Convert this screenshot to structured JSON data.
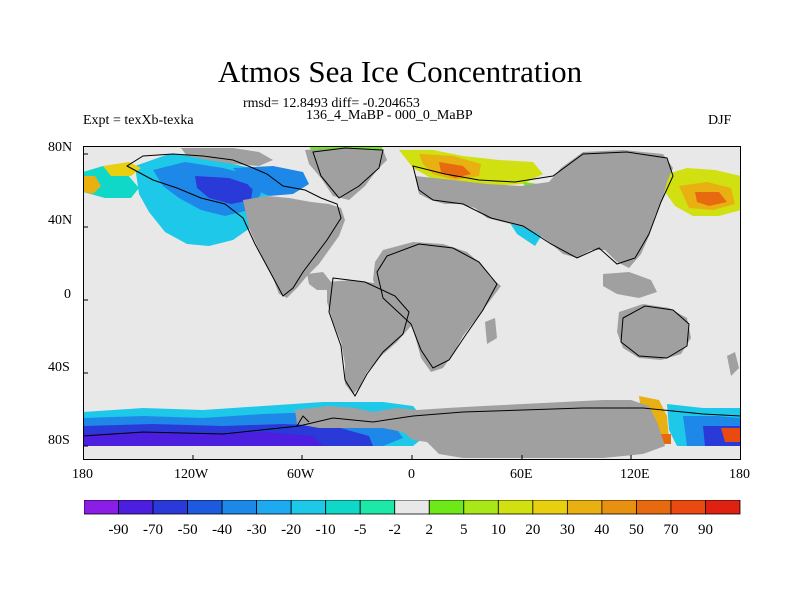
{
  "title": "Atmos Sea Ice Concentration",
  "stats": "rmsd= 12.8493 diff= -0.204653",
  "periods": "136_4_MaBP - 000_0_MaBP",
  "experiment": "Expt = texXb-texka",
  "season": "DJF",
  "lat_ticks": [
    "80N",
    "40N",
    "0",
    "40S",
    "80S"
  ],
  "lon_ticks": [
    "180",
    "120W",
    "60W",
    "0",
    "60E",
    "120E",
    "180"
  ],
  "colorbar": {
    "labels": [
      "-90",
      "-70",
      "-50",
      "-40",
      "-30",
      "-20",
      "-10",
      "-5",
      "-2",
      "2",
      "5",
      "10",
      "20",
      "30",
      "40",
      "50",
      "70",
      "90"
    ],
    "colors": [
      "#8a1ee6",
      "#4b1ee0",
      "#2a3ad8",
      "#1e5ae0",
      "#1e88e8",
      "#1eaaf0",
      "#1ec8e8",
      "#10d8c8",
      "#1ee8a8",
      "#e8e8e8",
      "#6ee818",
      "#a8e818",
      "#d0e010",
      "#e8d010",
      "#e8b010",
      "#e89010",
      "#e86a10",
      "#e84a10",
      "#e02010"
    ]
  },
  "map": {
    "land_color": "#a0a0a0",
    "ocean_color": "#e8e8e8",
    "lat_range": [
      -90,
      90
    ],
    "lon_range": [
      -180,
      180
    ]
  }
}
